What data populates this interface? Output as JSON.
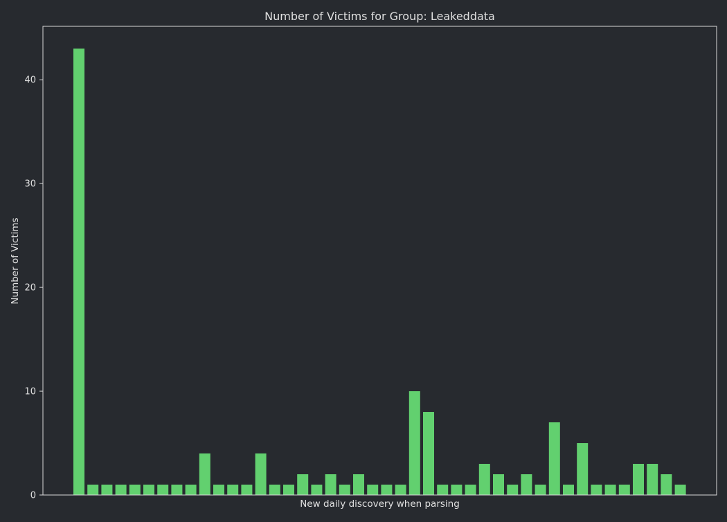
{
  "colors": {
    "background": "#272a2f",
    "bar": "#62d06f",
    "text": "#e0e0e0",
    "axis": "#d8d8d8"
  },
  "chart_data": {
    "type": "bar",
    "title": "Number of Victims for Group: Leakeddata",
    "xlabel": "New daily discovery when parsing",
    "ylabel": "Number of Victims",
    "ylim": [
      0,
      45.15
    ],
    "yticks": [
      0,
      10,
      20,
      30,
      40
    ],
    "grid": false,
    "x_tick_labels_shown": false,
    "values": [
      43,
      1,
      1,
      1,
      1,
      1,
      1,
      1,
      1,
      4,
      1,
      1,
      1,
      4,
      1,
      1,
      2,
      1,
      2,
      1,
      2,
      1,
      1,
      1,
      10,
      8,
      1,
      1,
      1,
      3,
      2,
      1,
      2,
      1,
      7,
      1,
      5,
      1,
      1,
      1,
      3,
      3,
      2,
      1
    ]
  }
}
